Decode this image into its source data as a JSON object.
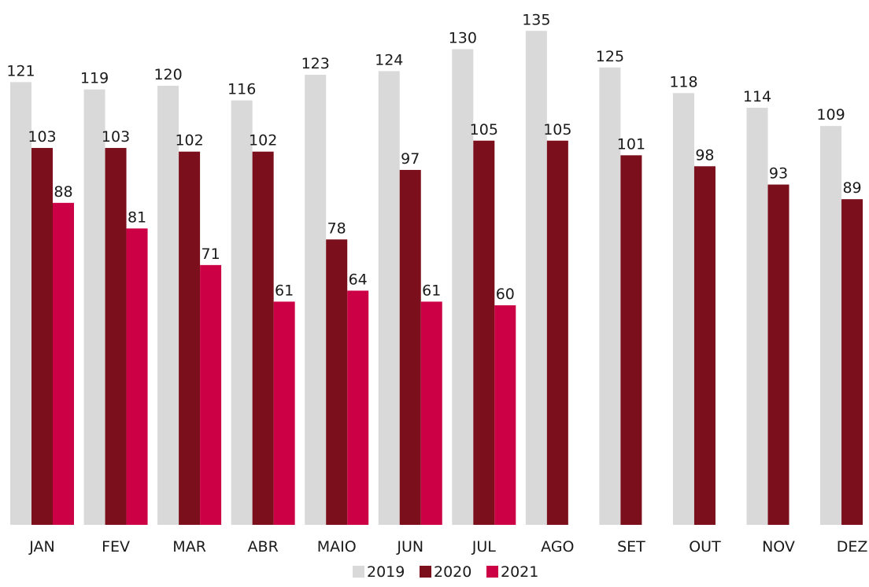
{
  "chart_data": {
    "type": "bar",
    "title": "",
    "xlabel": "",
    "ylabel": "",
    "ylim": [
      0,
      135
    ],
    "grid": false,
    "legend_position": "bottom-center",
    "categories": [
      "JAN",
      "FEV",
      "MAR",
      "ABR",
      "MAIO",
      "JUN",
      "JUL",
      "AGO",
      "SET",
      "OUT",
      "NOV",
      "DEZ"
    ],
    "series": [
      {
        "name": "2019",
        "color": "#d9d9d9",
        "values": [
          121,
          119,
          120,
          116,
          123,
          124,
          130,
          135,
          125,
          118,
          114,
          109
        ]
      },
      {
        "name": "2020",
        "color": "#7b0f1c",
        "values": [
          103,
          103,
          102,
          102,
          78,
          97,
          105,
          105,
          101,
          98,
          93,
          89
        ]
      },
      {
        "name": "2021",
        "color": "#cc0045",
        "values": [
          88,
          81,
          71,
          61,
          64,
          61,
          60,
          null,
          null,
          null,
          null,
          null
        ]
      }
    ]
  }
}
